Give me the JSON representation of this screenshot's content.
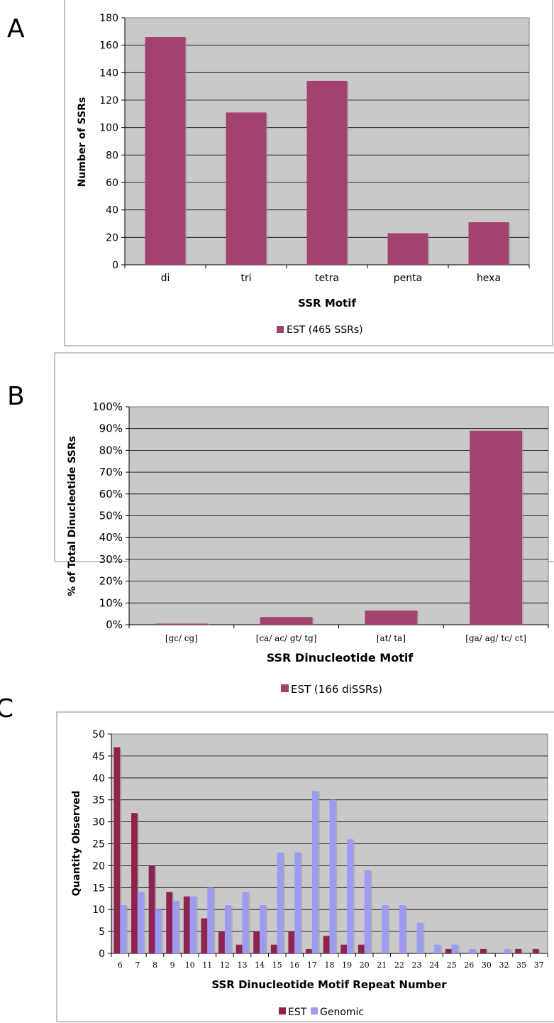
{
  "panels": [
    {
      "letter": "A"
    },
    {
      "letter": "B"
    },
    {
      "letter": "C"
    }
  ],
  "chart_data": [
    {
      "type": "bar",
      "categories": [
        "di",
        "tri",
        "tetra",
        "penta",
        "hexa"
      ],
      "series": [
        {
          "name": "EST (465 SSRs)",
          "values": [
            166,
            111,
            134,
            23,
            31
          ]
        }
      ],
      "yticks": [
        "0",
        "20",
        "40",
        "60",
        "80",
        "100",
        "120",
        "140",
        "160",
        "180"
      ],
      "ylim": [
        0,
        180
      ],
      "xlabel": "SSR Motif",
      "ylabel": "Number of SSRs",
      "grid": true,
      "legend": "bottom",
      "colors": {
        "est": "#a3426e",
        "plot_bg": "#c9c9c9"
      }
    },
    {
      "type": "bar",
      "categories": [
        "[gc/ cg]",
        "[ca/ ac/ gt/ tg]",
        "[at/ ta]",
        "[ga/ ag/ tc/ ct]"
      ],
      "series": [
        {
          "name": "EST (166 diSSRs)",
          "values": [
            0.5,
            3.5,
            6.5,
            89
          ]
        }
      ],
      "yticks": [
        "0%",
        "10%",
        "20%",
        "30%",
        "40%",
        "50%",
        "60%",
        "70%",
        "80%",
        "90%",
        "100%"
      ],
      "ylim": [
        0,
        100
      ],
      "xlabel": "SSR Dinucleotide Motif",
      "ylabel": "% of Total Dinucleotide SSRs",
      "grid": true,
      "legend": "bottom",
      "colors": {
        "est": "#a3426e",
        "plot_bg": "#c9c9c9"
      }
    },
    {
      "type": "bar",
      "categories": [
        "6",
        "7",
        "8",
        "9",
        "10",
        "11",
        "12",
        "13",
        "14",
        "15",
        "16",
        "17",
        "18",
        "19",
        "20",
        "21",
        "22",
        "23",
        "24",
        "25",
        "26",
        "30",
        "32",
        "35",
        "37"
      ],
      "series": [
        {
          "name": "EST",
          "values": [
            47,
            32,
            20,
            14,
            13,
            8,
            5,
            2,
            5,
            2,
            5,
            1,
            4,
            2,
            2,
            0,
            0,
            0,
            0,
            1,
            0,
            1,
            0,
            1,
            1
          ]
        },
        {
          "name": "Genomic",
          "values": [
            11,
            14,
            10,
            12,
            13,
            15,
            11,
            14,
            11,
            23,
            23,
            37,
            35,
            26,
            19,
            11,
            11,
            7,
            2,
            2,
            1,
            0,
            1,
            0,
            0
          ]
        }
      ],
      "yticks": [
        "0",
        "5",
        "10",
        "15",
        "20",
        "25",
        "30",
        "35",
        "40",
        "45",
        "50"
      ],
      "ylim": [
        0,
        50
      ],
      "xlabel": "SSR Dinucleotide Motif Repeat Number",
      "ylabel": "Quantity Observed",
      "grid": true,
      "legend": "bottom",
      "colors": {
        "est": "#8f2350",
        "genomic": "#9b9bf2",
        "plot_bg": "#c9c9c9"
      }
    }
  ]
}
